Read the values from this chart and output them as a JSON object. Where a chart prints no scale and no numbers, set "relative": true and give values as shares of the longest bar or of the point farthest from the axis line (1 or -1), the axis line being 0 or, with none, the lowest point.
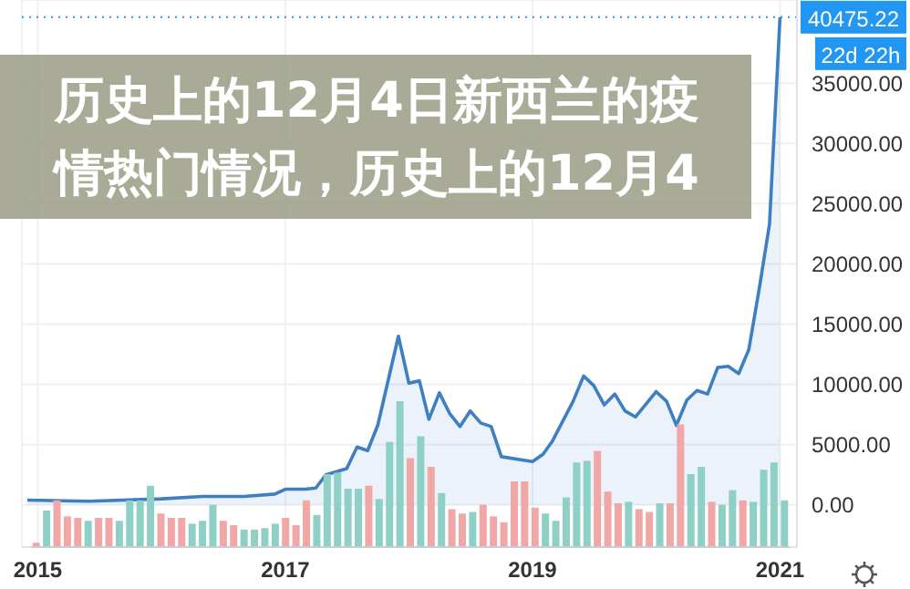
{
  "chart_data": [
    {
      "type": "area",
      "title": "历史上的12月4日新西兰的疫情热门情况，历史上的12月4",
      "x": [
        "2014-12",
        "2015-06",
        "2016-01",
        "2016-05",
        "2016-09",
        "2016-12",
        "2017-01",
        "2017-03",
        "2017-04",
        "2017-05",
        "2017-07",
        "2017-08",
        "2017-09",
        "2017-10",
        "2017-12",
        "2018-01",
        "2018-02",
        "2018-03",
        "2018-04",
        "2018-05",
        "2018-06",
        "2018-07",
        "2018-08",
        "2018-09",
        "2018-10",
        "2019-01",
        "2019-02",
        "2019-03",
        "2019-05",
        "2019-06",
        "2019-07",
        "2019-08",
        "2019-09",
        "2019-10",
        "2019-11",
        "2020-01",
        "2020-02",
        "2020-03",
        "2020-04",
        "2020-05",
        "2020-06",
        "2020-07",
        "2020-08",
        "2020-09",
        "2020-10",
        "2020-11",
        "2020-12",
        "2021-01"
      ],
      "series": [
        {
          "color": "#3d7fc1",
          "values": [
            400,
            300,
            500,
            700,
            700,
            900,
            1300,
            1300,
            1400,
            2500,
            3000,
            4800,
            4500,
            6600,
            14000,
            10100,
            10300,
            7100,
            9300,
            7600,
            6500,
            7800,
            6800,
            6500,
            4000,
            3600,
            4200,
            5300,
            8600,
            10700,
            9900,
            8300,
            9200,
            7800,
            7300,
            9400,
            8600,
            6600,
            8700,
            9500,
            9200,
            11400,
            11500,
            10900,
            12900,
            18000,
            23300,
            40475.22
          ]
        }
      ],
      "xlim": [
        "2014-11-15",
        "2021-02-20"
      ],
      "xticks": [
        "2015",
        "2017",
        "2019",
        "2021"
      ],
      "ylim": [
        -3500,
        41900
      ],
      "yticks": [
        {
          "value": 0,
          "label": "0.00"
        },
        {
          "value": 5000,
          "label": "5000.00"
        },
        {
          "value": 10000,
          "label": "10000.00"
        },
        {
          "value": 15000,
          "label": "15000.00"
        },
        {
          "value": 20000,
          "label": "20000.00"
        },
        {
          "value": 25000,
          "label": "25000.00"
        },
        {
          "value": 30000,
          "label": "30000.00"
        },
        {
          "value": 35000,
          "label": "35000.00"
        }
      ],
      "ref_lines": [
        {
          "axis": "y",
          "value": 40475.22,
          "label": "40475.22",
          "color": "#2196f3",
          "line_style": "dotted"
        }
      ],
      "annotations": [
        "22d 22h"
      ],
      "grid": true,
      "legend": false,
      "marker": "none",
      "line_style": "solid"
    },
    {
      "type": "bar",
      "relative": true,
      "categories": [
        null,
        null,
        null,
        null,
        null,
        null,
        null,
        null,
        null,
        null,
        null,
        null,
        null,
        null,
        null,
        null,
        null,
        null,
        null,
        null,
        null,
        null,
        null,
        null,
        null,
        null,
        null,
        null,
        null,
        null,
        null,
        null,
        null,
        null,
        null,
        null,
        null,
        null,
        null,
        null,
        null,
        null,
        null,
        null,
        null,
        null,
        null,
        null,
        null,
        null,
        null,
        null,
        null,
        null,
        null,
        null,
        null,
        null,
        null,
        null,
        null,
        null,
        null,
        null,
        null,
        null,
        null,
        null,
        null,
        null,
        null,
        null,
        null
      ],
      "values": [
        0.03,
        0.25,
        0.32,
        0.21,
        0.2,
        0.18,
        0.2,
        0.2,
        0.18,
        0.32,
        0.32,
        0.42,
        0.23,
        0.2,
        0.2,
        0.16,
        0.18,
        0.29,
        0.18,
        0.15,
        0.12,
        0.12,
        0.13,
        0.16,
        0.2,
        0.15,
        0.32,
        0.22,
        0.5,
        0.51,
        0.4,
        0.4,
        0.42,
        0.33,
        0.72,
        1,
        0.61,
        0.76,
        0.55,
        0.37,
        0.26,
        0.23,
        0.24,
        0.29,
        0.21,
        0.17,
        0.45,
        0.45,
        0.27,
        0.23,
        0.18,
        0.34,
        0.58,
        0.59,
        0.66,
        0.38,
        0.3,
        0.31,
        0.26,
        0.24,
        0.3,
        0.3,
        0.84,
        0.5,
        0.55,
        0.31,
        0.29,
        0.39,
        0.32,
        0.31,
        0.53,
        0.58,
        0.32
      ],
      "colors": [
        "#f2a7a7",
        "#8fd0c6",
        "#f2a7a7",
        "#f2a7a7",
        "#f2a7a7",
        "#8fd0c6",
        "#f2a7a7",
        "#f2a7a7",
        "#8fd0c6",
        "#8fd0c6",
        "#8fd0c6",
        "#8fd0c6",
        "#f2a7a7",
        "#f2a7a7",
        "#f2a7a7",
        "#8fd0c6",
        "#8fd0c6",
        "#8fd0c6",
        "#f2a7a7",
        "#f2a7a7",
        "#8fd0c6",
        "#8fd0c6",
        "#8fd0c6",
        "#8fd0c6",
        "#f2a7a7",
        "#f2a7a7",
        "#f2a7a7",
        "#8fd0c6",
        "#8fd0c6",
        "#8fd0c6",
        "#8fd0c6",
        "#8fd0c6",
        "#f2a7a7",
        "#8fd0c6",
        "#8fd0c6",
        "#8fd0c6",
        "#f2a7a7",
        "#8fd0c6",
        "#f2a7a7",
        "#8fd0c6",
        "#f2a7a7",
        "#f2a7a7",
        "#8fd0c6",
        "#f2a7a7",
        "#f2a7a7",
        "#f2a7a7",
        "#f2a7a7",
        "#f2a7a7",
        "#f2a7a7",
        "#8fd0c6",
        "#8fd0c6",
        "#8fd0c6",
        "#8fd0c6",
        "#8fd0c6",
        "#f2a7a7",
        "#f2a7a7",
        "#f2a7a7",
        "#8fd0c6",
        "#f2a7a7",
        "#f2a7a7",
        "#8fd0c6",
        "#f2a7a7",
        "#f2a7a7",
        "#8fd0c6",
        "#8fd0c6",
        "#f2a7a7",
        "#8fd0c6",
        "#8fd0c6",
        "#f2a7a7",
        "#8fd0c6",
        "#8fd0c6",
        "#8fd0c6",
        "#8fd0c6"
      ]
    }
  ]
}
